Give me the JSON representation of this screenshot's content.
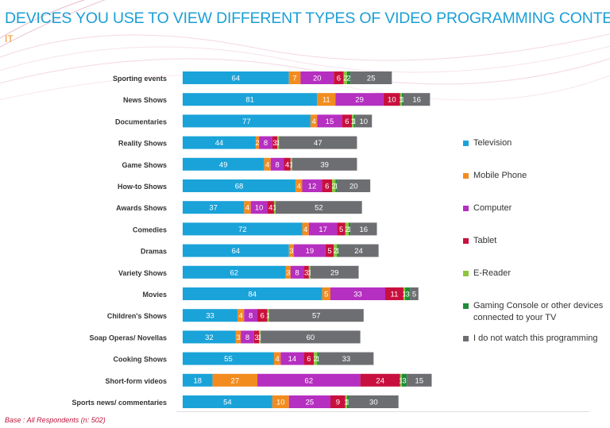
{
  "title": "DEVICES YOU USE TO VIEW DIFFERENT TYPES OF VIDEO PROGRAMMING CONTENT",
  "subtitle": "IT",
  "footnote": "Base : All Respondents (n: 502)",
  "chart_data": {
    "type": "bar",
    "orientation": "horizontal",
    "stacked": true,
    "legend_position": "right",
    "categories": [
      "Sporting events",
      "News Shows",
      "Documentaries",
      "Reality Shows",
      "Game Shows",
      "How-to Shows",
      "Awards Shows",
      "Comedies",
      "Dramas",
      "Variety Shows",
      "Movies",
      "Children's Shows",
      "Soap Operas/ Novellas",
      "Cooking Shows",
      "Short-form videos",
      "Sports news/ commentaries"
    ],
    "series": [
      {
        "name": "Television",
        "color": "#1aa3d9",
        "values": [
          64,
          81,
          77,
          44,
          49,
          68,
          37,
          72,
          64,
          62,
          84,
          33,
          32,
          55,
          18,
          54
        ]
      },
      {
        "name": "Mobile Phone",
        "color": "#f28c1e",
        "values": [
          7,
          11,
          4,
          2,
          4,
          4,
          4,
          4,
          3,
          3,
          5,
          4,
          3,
          4,
          27,
          10
        ]
      },
      {
        "name": "Computer",
        "color": "#b52fc0",
        "values": [
          20,
          29,
          15,
          8,
          8,
          12,
          10,
          17,
          19,
          8,
          33,
          8,
          8,
          14,
          62,
          25
        ]
      },
      {
        "name": "Tablet",
        "color": "#c8103e",
        "values": [
          6,
          10,
          6,
          3,
          4,
          6,
          4,
          5,
          5,
          3,
          11,
          6,
          3,
          6,
          24,
          9
        ]
      },
      {
        "name": "E-Reader",
        "color": "#8cc63e",
        "values": [
          2,
          1,
          1,
          1,
          1,
          2,
          1,
          2,
          2,
          1,
          1,
          1,
          1,
          2,
          1,
          1
        ]
      },
      {
        "name": "Gaming Console or other devices connected to your TV",
        "color": "#1e8c3a",
        "values": [
          2,
          1,
          1,
          0,
          0,
          1,
          0,
          1,
          1,
          0,
          3,
          0,
          0,
          1,
          3,
          1
        ]
      },
      {
        "name": "I do not watch this programming",
        "color": "#6d6e71",
        "values": [
          25,
          16,
          10,
          47,
          39,
          20,
          52,
          16,
          24,
          29,
          5,
          57,
          60,
          33,
          15,
          30
        ]
      }
    ],
    "value_labels": [
      [
        "64",
        "7",
        "20",
        "6",
        "2",
        "2",
        "25"
      ],
      [
        "81",
        "11",
        "29",
        "10",
        "1",
        "1",
        "16"
      ],
      [
        "77",
        "4",
        "15",
        "6",
        "1",
        "1",
        "10"
      ],
      [
        "44",
        "2",
        "8",
        "3",
        "1",
        "",
        "47"
      ],
      [
        "49",
        "4",
        "8",
        "4",
        "1",
        "",
        "39"
      ],
      [
        "68",
        "4",
        "12",
        "6",
        "2",
        "1",
        "20"
      ],
      [
        "37",
        "4",
        "10",
        "4",
        "1",
        "",
        "52"
      ],
      [
        "72",
        "4",
        "17",
        "5",
        "2",
        "1",
        "16"
      ],
      [
        "64",
        "3",
        "19",
        "5",
        "2",
        "1",
        "24"
      ],
      [
        "62",
        "3",
        "8",
        "3",
        "1",
        "",
        "29"
      ],
      [
        "84",
        "5",
        "33",
        "11",
        "1",
        "3",
        "5"
      ],
      [
        "33",
        "4",
        "8",
        "6",
        "1",
        "",
        "57"
      ],
      [
        "32",
        "3",
        "8",
        "3",
        "1",
        "",
        "60"
      ],
      [
        "55",
        "4",
        "14",
        "6",
        "2",
        "1",
        "33"
      ],
      [
        "18",
        "27",
        "62",
        "24",
        "1",
        "3",
        "15"
      ],
      [
        "54",
        "10",
        "25",
        "9",
        "1",
        "1",
        "30"
      ]
    ]
  }
}
